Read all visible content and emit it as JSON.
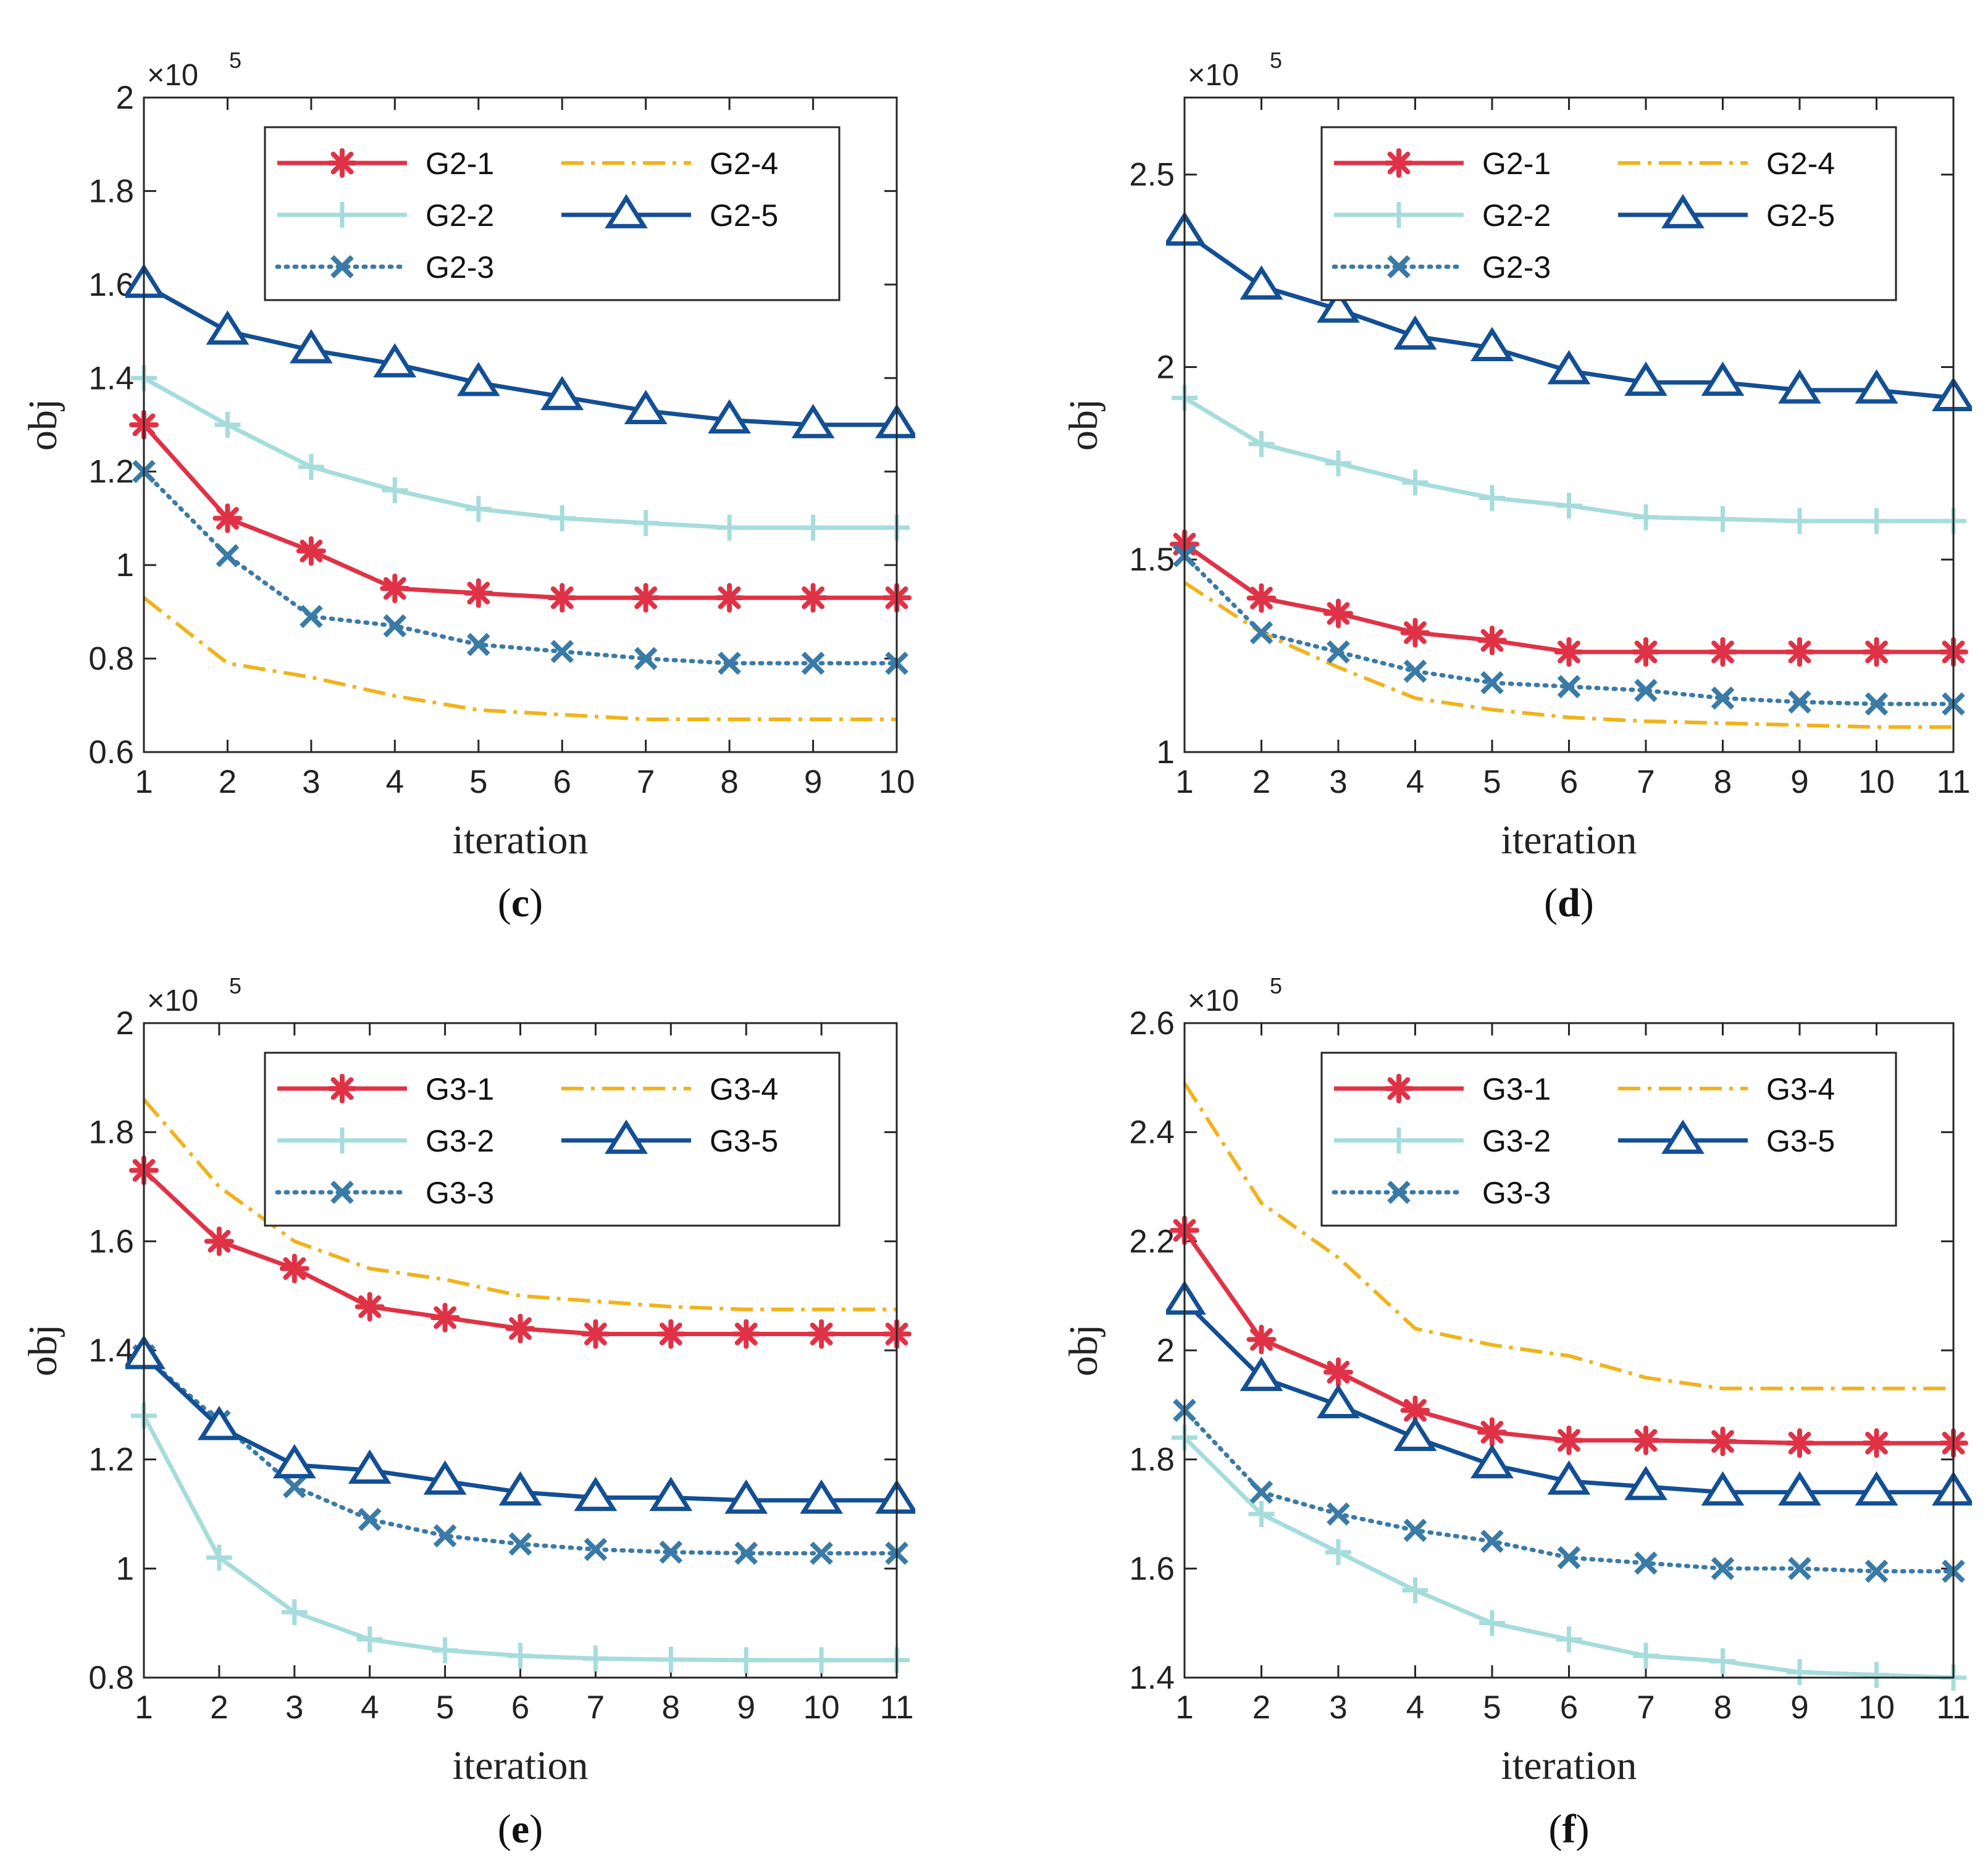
{
  "chart_data": [
    {
      "type": "line",
      "panel_label": "c",
      "xlabel": "iteration",
      "ylabel": "obj",
      "y_multiplier": "×10",
      "y_multiplier_exp": "5",
      "xlim": [
        1,
        10
      ],
      "ylim": [
        0.6,
        2.0
      ],
      "xticks": [
        1,
        2,
        3,
        4,
        5,
        6,
        7,
        8,
        9,
        10
      ],
      "yticks": [
        0.6,
        0.8,
        1.0,
        1.2,
        1.4,
        1.6,
        1.8,
        2.0
      ],
      "ytick_labels": [
        "0.6",
        "0.8",
        "1",
        "1.2",
        "1.4",
        "1.6",
        "1.8",
        "2"
      ],
      "legend_position": "top-right",
      "x": [
        1,
        2,
        3,
        4,
        5,
        6,
        7,
        8,
        9,
        10
      ],
      "series": [
        {
          "name": "G2-1",
          "style": "solid-star",
          "color": "#e03246",
          "values": [
            1.3,
            1.1,
            1.03,
            0.95,
            0.94,
            0.93,
            0.93,
            0.93,
            0.93,
            0.93
          ]
        },
        {
          "name": "G2-2",
          "style": "solid-plus",
          "color": "#a6dcdc",
          "values": [
            1.4,
            1.3,
            1.21,
            1.16,
            1.12,
            1.1,
            1.09,
            1.08,
            1.08,
            1.08
          ]
        },
        {
          "name": "G2-3",
          "style": "dotted-x",
          "color": "#3a7aa6",
          "values": [
            1.2,
            1.02,
            0.89,
            0.87,
            0.83,
            0.815,
            0.8,
            0.79,
            0.79,
            0.79
          ]
        },
        {
          "name": "G2-4",
          "style": "dashdot",
          "color": "#f0b31c",
          "values": [
            0.93,
            0.79,
            0.76,
            0.72,
            0.69,
            0.68,
            0.67,
            0.67,
            0.67,
            0.67
          ]
        },
        {
          "name": "G2-5",
          "style": "solid-triangle",
          "color": "#134f94",
          "values": [
            1.6,
            1.5,
            1.46,
            1.43,
            1.39,
            1.36,
            1.33,
            1.31,
            1.3,
            1.3
          ]
        }
      ]
    },
    {
      "type": "line",
      "panel_label": "d",
      "xlabel": "iteration",
      "ylabel": "obj",
      "y_multiplier": "×10",
      "y_multiplier_exp": "5",
      "xlim": [
        1,
        11
      ],
      "ylim": [
        1.0,
        2.7
      ],
      "xticks": [
        1,
        2,
        3,
        4,
        5,
        6,
        7,
        8,
        9,
        10,
        11
      ],
      "yticks": [
        1.0,
        1.5,
        2.0,
        2.5
      ],
      "ytick_labels": [
        "1",
        "1.5",
        "2",
        "2.5"
      ],
      "legend_position": "top-right",
      "x": [
        1,
        2,
        3,
        4,
        5,
        6,
        7,
        8,
        9,
        10,
        11
      ],
      "series": [
        {
          "name": "G2-1",
          "style": "solid-star",
          "color": "#e03246",
          "values": [
            1.54,
            1.4,
            1.36,
            1.31,
            1.29,
            1.26,
            1.26,
            1.26,
            1.26,
            1.26,
            1.26
          ]
        },
        {
          "name": "G2-2",
          "style": "solid-plus",
          "color": "#a6dcdc",
          "values": [
            1.92,
            1.8,
            1.75,
            1.7,
            1.66,
            1.64,
            1.61,
            1.605,
            1.6,
            1.6,
            1.6
          ]
        },
        {
          "name": "G2-3",
          "style": "dotted-x",
          "color": "#3a7aa6",
          "values": [
            1.51,
            1.31,
            1.26,
            1.21,
            1.18,
            1.17,
            1.16,
            1.14,
            1.13,
            1.125,
            1.125
          ]
        },
        {
          "name": "G2-4",
          "style": "dashdot",
          "color": "#f0b31c",
          "values": [
            1.44,
            1.31,
            1.22,
            1.14,
            1.11,
            1.09,
            1.08,
            1.075,
            1.07,
            1.065,
            1.065
          ]
        },
        {
          "name": "G2-5",
          "style": "solid-triangle",
          "color": "#134f94",
          "values": [
            2.35,
            2.21,
            2.15,
            2.08,
            2.05,
            1.99,
            1.96,
            1.96,
            1.94,
            1.94,
            1.92
          ]
        }
      ]
    },
    {
      "type": "line",
      "panel_label": "e",
      "xlabel": "iteration",
      "ylabel": "obj",
      "y_multiplier": "×10",
      "y_multiplier_exp": "5",
      "xlim": [
        1,
        11
      ],
      "ylim": [
        0.8,
        2.0
      ],
      "xticks": [
        1,
        2,
        3,
        4,
        5,
        6,
        7,
        8,
        9,
        10,
        11
      ],
      "yticks": [
        0.8,
        1.0,
        1.2,
        1.4,
        1.6,
        1.8,
        2.0
      ],
      "ytick_labels": [
        "0.8",
        "1",
        "1.2",
        "1.4",
        "1.6",
        "1.8",
        "2"
      ],
      "legend_position": "top-right",
      "x": [
        1,
        2,
        3,
        4,
        5,
        6,
        7,
        8,
        9,
        10,
        11
      ],
      "series": [
        {
          "name": "G3-1",
          "style": "solid-star",
          "color": "#e03246",
          "values": [
            1.73,
            1.6,
            1.55,
            1.48,
            1.46,
            1.44,
            1.43,
            1.43,
            1.43,
            1.43,
            1.43
          ]
        },
        {
          "name": "G3-2",
          "style": "solid-plus",
          "color": "#a6dcdc",
          "values": [
            1.28,
            1.02,
            0.92,
            0.87,
            0.85,
            0.84,
            0.835,
            0.833,
            0.832,
            0.832,
            0.832
          ]
        },
        {
          "name": "G3-3",
          "style": "dotted-x",
          "color": "#3a7aa6",
          "values": [
            1.39,
            1.27,
            1.15,
            1.09,
            1.06,
            1.045,
            1.035,
            1.03,
            1.028,
            1.028,
            1.028
          ]
        },
        {
          "name": "G3-4",
          "style": "dashdot",
          "color": "#f0b31c",
          "values": [
            1.86,
            1.7,
            1.6,
            1.55,
            1.53,
            1.5,
            1.49,
            1.48,
            1.475,
            1.475,
            1.475
          ]
        },
        {
          "name": "G3-5",
          "style": "solid-triangle",
          "color": "#134f94",
          "values": [
            1.39,
            1.26,
            1.19,
            1.18,
            1.16,
            1.14,
            1.13,
            1.13,
            1.125,
            1.125,
            1.125
          ]
        }
      ]
    },
    {
      "type": "line",
      "panel_label": "f",
      "xlabel": "iteration",
      "ylabel": "obj",
      "y_multiplier": "×10",
      "y_multiplier_exp": "5",
      "xlim": [
        1,
        11
      ],
      "ylim": [
        1.4,
        2.6
      ],
      "xticks": [
        1,
        2,
        3,
        4,
        5,
        6,
        7,
        8,
        9,
        10,
        11
      ],
      "yticks": [
        1.4,
        1.6,
        1.8,
        2.0,
        2.2,
        2.4,
        2.6
      ],
      "ytick_labels": [
        "1.4",
        "1.6",
        "1.8",
        "2",
        "2.2",
        "2.4",
        "2.6"
      ],
      "legend_position": "top-right",
      "x": [
        1,
        2,
        3,
        4,
        5,
        6,
        7,
        8,
        9,
        10,
        11
      ],
      "series": [
        {
          "name": "G3-1",
          "style": "solid-star",
          "color": "#e03246",
          "values": [
            2.22,
            2.02,
            1.96,
            1.89,
            1.85,
            1.835,
            1.835,
            1.833,
            1.83,
            1.83,
            1.83
          ]
        },
        {
          "name": "G3-2",
          "style": "solid-plus",
          "color": "#a6dcdc",
          "values": [
            1.84,
            1.7,
            1.63,
            1.56,
            1.5,
            1.47,
            1.44,
            1.43,
            1.41,
            1.405,
            1.4
          ]
        },
        {
          "name": "G3-3",
          "style": "dotted-x",
          "color": "#3a7aa6",
          "values": [
            1.89,
            1.74,
            1.7,
            1.67,
            1.65,
            1.62,
            1.61,
            1.6,
            1.6,
            1.595,
            1.595
          ]
        },
        {
          "name": "G3-4",
          "style": "dashdot",
          "color": "#f0b31c",
          "values": [
            2.49,
            2.27,
            2.17,
            2.04,
            2.01,
            1.99,
            1.95,
            1.93,
            1.93,
            1.93,
            1.93
          ]
        },
        {
          "name": "G3-5",
          "style": "solid-triangle",
          "color": "#134f94",
          "values": [
            2.09,
            1.95,
            1.9,
            1.84,
            1.79,
            1.76,
            1.75,
            1.74,
            1.74,
            1.74,
            1.74
          ]
        }
      ]
    }
  ]
}
